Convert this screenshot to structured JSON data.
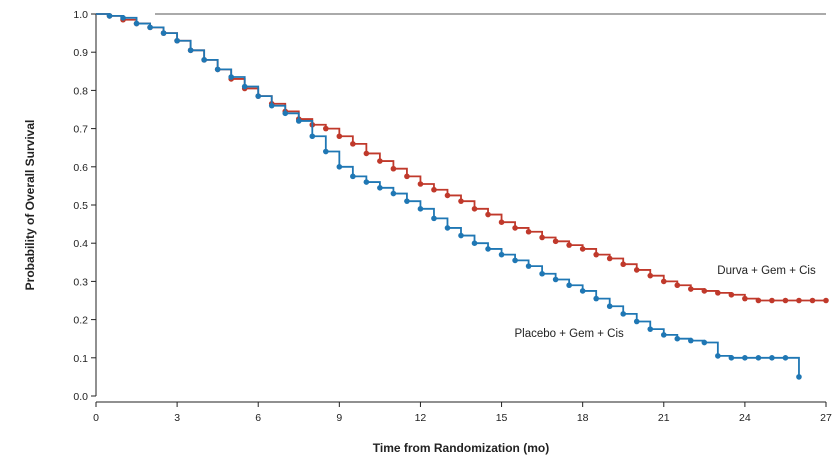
{
  "chart_data": {
    "type": "line",
    "xlabel": "Time from Randomization (mo)",
    "ylabel": "Probability of Overall Survival",
    "xlim": [
      0,
      27
    ],
    "ylim": [
      0.0,
      1.0
    ],
    "xticks": [
      0,
      3,
      6,
      9,
      12,
      15,
      18,
      21,
      24,
      27
    ],
    "yticks": [
      0.0,
      0.1,
      0.2,
      0.3,
      0.4,
      0.5,
      0.6,
      0.7,
      0.8,
      0.9,
      1.0
    ],
    "ytick_labels": [
      "0.0",
      "0.1",
      "0.2",
      "0.3",
      "0.4",
      "0.5",
      "0.6",
      "0.7",
      "0.8",
      "0.9",
      "1.0"
    ],
    "grid": false,
    "step": true,
    "series": [
      {
        "name": "Durva + Gem + Cis",
        "color": "#c0392b",
        "x": [
          0,
          0.5,
          1,
          1.5,
          2,
          2.5,
          3,
          3.5,
          4,
          4.5,
          5,
          5.5,
          6,
          6.5,
          7,
          7.5,
          8,
          8.5,
          9,
          9.5,
          10,
          10.5,
          11,
          11.5,
          12,
          12.5,
          13,
          13.5,
          14,
          14.5,
          15,
          15.5,
          16,
          16.5,
          17,
          17.5,
          18,
          18.5,
          19,
          19.5,
          20,
          20.5,
          21,
          21.5,
          22,
          22.5,
          23,
          23.5,
          24,
          24.5,
          25,
          25.5,
          26,
          26.5,
          27
        ],
        "y": [
          1.0,
          0.995,
          0.985,
          0.975,
          0.965,
          0.95,
          0.93,
          0.905,
          0.88,
          0.855,
          0.83,
          0.805,
          0.785,
          0.765,
          0.745,
          0.725,
          0.71,
          0.7,
          0.68,
          0.66,
          0.635,
          0.615,
          0.595,
          0.575,
          0.555,
          0.54,
          0.525,
          0.51,
          0.49,
          0.475,
          0.455,
          0.44,
          0.43,
          0.415,
          0.405,
          0.395,
          0.385,
          0.37,
          0.36,
          0.345,
          0.33,
          0.315,
          0.3,
          0.29,
          0.28,
          0.275,
          0.27,
          0.265,
          0.255,
          0.25,
          0.25,
          0.25,
          0.25,
          0.25,
          0.25
        ]
      },
      {
        "name": "Placebo + Gem + Cis",
        "color": "#1f77b4",
        "x": [
          0,
          0.5,
          1,
          1.5,
          2,
          2.5,
          3,
          3.5,
          4,
          4.5,
          5,
          5.5,
          6,
          6.5,
          7,
          7.5,
          8,
          8.5,
          9,
          9.5,
          10,
          10.5,
          11,
          11.5,
          12,
          12.5,
          13,
          13.5,
          14,
          14.5,
          15,
          15.5,
          16,
          16.5,
          17,
          17.5,
          18,
          18.5,
          19,
          19.5,
          20,
          20.5,
          21,
          21.5,
          22,
          22.5,
          23,
          23.5,
          24,
          24.5,
          25,
          25.5,
          26
        ],
        "y": [
          1.0,
          0.995,
          0.99,
          0.975,
          0.965,
          0.95,
          0.93,
          0.905,
          0.88,
          0.855,
          0.835,
          0.81,
          0.785,
          0.76,
          0.74,
          0.72,
          0.68,
          0.64,
          0.6,
          0.575,
          0.56,
          0.545,
          0.53,
          0.51,
          0.49,
          0.465,
          0.44,
          0.42,
          0.4,
          0.385,
          0.37,
          0.355,
          0.34,
          0.32,
          0.305,
          0.29,
          0.275,
          0.255,
          0.235,
          0.215,
          0.195,
          0.175,
          0.16,
          0.15,
          0.145,
          0.14,
          0.105,
          0.1,
          0.1,
          0.1,
          0.1,
          0.1,
          0.05
        ]
      }
    ],
    "annotations": [
      {
        "text": "Durva + Gem + Cis",
        "x": 24.8,
        "y": 0.32,
        "anchor": "middle"
      },
      {
        "text": "Placebo + Gem + Cis",
        "x": 17.5,
        "y": 0.155,
        "anchor": "middle"
      }
    ]
  }
}
